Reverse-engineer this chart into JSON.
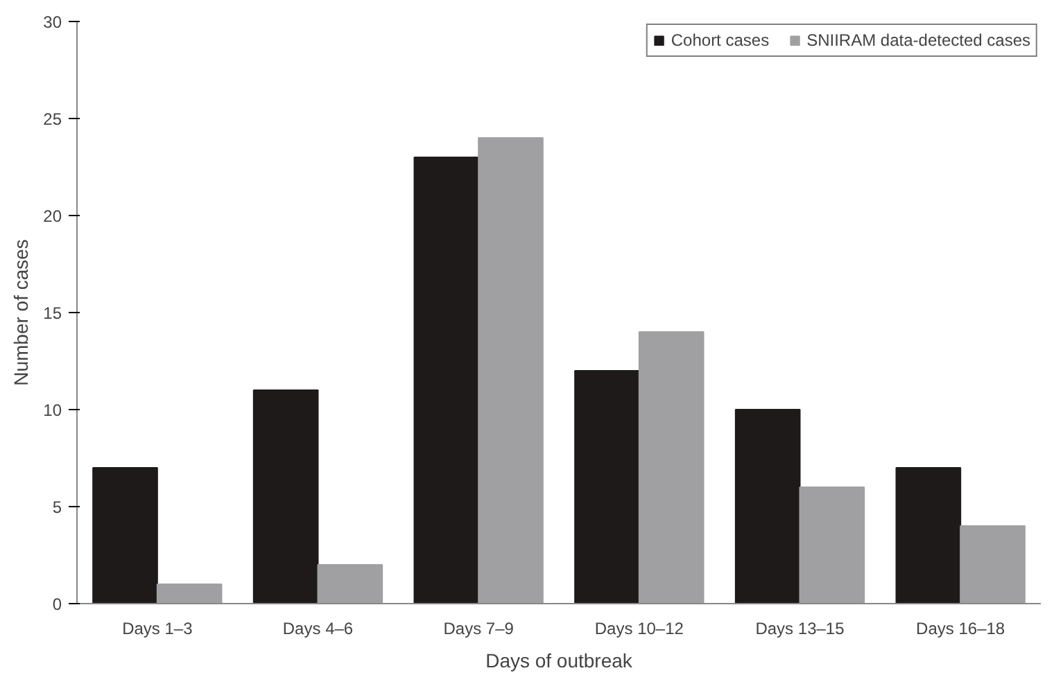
{
  "chart_data": {
    "type": "bar",
    "xlabel": "Days of outbreak",
    "ylabel": "Number of cases",
    "categories": [
      "Days 1–3",
      "Days 4–6",
      "Days 7–9",
      "Days 10–12",
      "Days 13–15",
      "Days 16–18"
    ],
    "series": [
      {
        "name": "Cohort cases",
        "color": "#1e1a1a",
        "values": [
          7,
          11,
          23,
          12,
          10,
          7
        ]
      },
      {
        "name": "SNIIRAM data-detected cases",
        "color": "#a0a0a2",
        "values": [
          1,
          2,
          24,
          14,
          6,
          4
        ]
      }
    ],
    "ylim": [
      0,
      30
    ],
    "yticks": [
      0,
      5,
      10,
      15,
      20,
      25,
      30
    ],
    "grid": false,
    "legend": "top right"
  }
}
